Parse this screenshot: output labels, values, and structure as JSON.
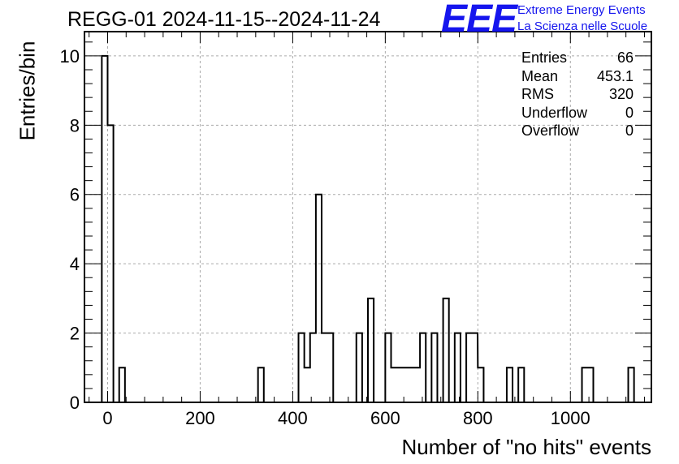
{
  "title": "REGG-01 2024-11-15--2024-11-24",
  "logo": {
    "mark": "EEE",
    "line1": "Extreme Energy Events",
    "line2": "La Scienza nelle Scuole",
    "color": "#1515ee"
  },
  "stats": [
    {
      "label": "Entries",
      "value": "66"
    },
    {
      "label": "Mean",
      "value": "453.1"
    },
    {
      "label": "RMS",
      "value": "320"
    },
    {
      "label": "Underflow",
      "value": "0"
    },
    {
      "label": "Overflow",
      "value": "0"
    }
  ],
  "chart_data": {
    "type": "bar",
    "title": "REGG-01 2024-11-15--2024-11-24",
    "xlabel": "Number of \"no hits\" events",
    "ylabel": "Entries/bin",
    "xlim": [
      -50,
      1175
    ],
    "ylim": [
      0,
      10.7
    ],
    "bin_width": 12.5,
    "grid": true,
    "xticks": [
      0,
      200,
      400,
      600,
      800,
      1000
    ],
    "yticks": [
      0,
      2,
      4,
      6,
      8,
      10
    ],
    "bins": [
      {
        "x": -6.25,
        "count": 10
      },
      {
        "x": 6.25,
        "count": 8
      },
      {
        "x": 31.25,
        "count": 1
      },
      {
        "x": 331.25,
        "count": 1
      },
      {
        "x": 418.75,
        "count": 2
      },
      {
        "x": 431.25,
        "count": 1
      },
      {
        "x": 443.75,
        "count": 2
      },
      {
        "x": 456.25,
        "count": 6
      },
      {
        "x": 468.75,
        "count": 2
      },
      {
        "x": 481.25,
        "count": 2
      },
      {
        "x": 543.75,
        "count": 2
      },
      {
        "x": 568.75,
        "count": 3
      },
      {
        "x": 606.25,
        "count": 2
      },
      {
        "x": 618.75,
        "count": 1
      },
      {
        "x": 631.25,
        "count": 1
      },
      {
        "x": 643.75,
        "count": 1
      },
      {
        "x": 656.25,
        "count": 1
      },
      {
        "x": 668.75,
        "count": 1
      },
      {
        "x": 681.25,
        "count": 2
      },
      {
        "x": 706.25,
        "count": 2
      },
      {
        "x": 731.25,
        "count": 3
      },
      {
        "x": 756.25,
        "count": 2
      },
      {
        "x": 781.25,
        "count": 2
      },
      {
        "x": 793.25,
        "count": 2
      },
      {
        "x": 806.25,
        "count": 1
      },
      {
        "x": 868.75,
        "count": 1
      },
      {
        "x": 893.75,
        "count": 1
      },
      {
        "x": 1031.25,
        "count": 1
      },
      {
        "x": 1043.25,
        "count": 1
      },
      {
        "x": 1131.25,
        "count": 1
      }
    ]
  }
}
